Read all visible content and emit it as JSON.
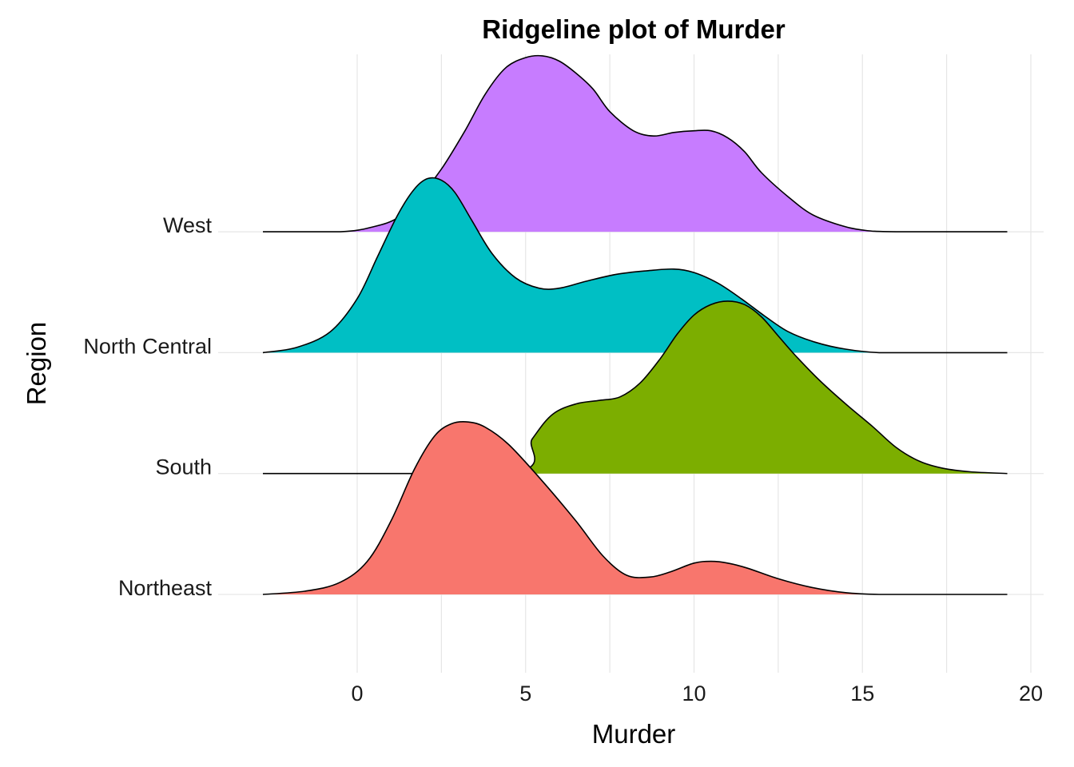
{
  "chart_data": {
    "type": "ridgeline",
    "title": "Ridgeline plot of Murder",
    "xlabel": "Murder",
    "ylabel": "Region",
    "xlim": [
      -2.8,
      20.5
    ],
    "x_ticks": [
      0,
      5,
      10,
      15,
      20
    ],
    "categories": [
      "Northeast",
      "South",
      "North Central",
      "West"
    ],
    "series": [
      {
        "name": "Northeast",
        "color": "#F8766D",
        "x": [
          -2.8,
          -1.5,
          -0.5,
          0.3,
          1.0,
          1.7,
          2.3,
          2.8,
          3.3,
          3.8,
          4.5,
          5.5,
          6.5,
          7.3,
          8.0,
          8.7,
          9.3,
          10.0,
          10.5,
          11.0,
          11.6,
          12.5,
          13.5,
          14.5,
          15.5,
          17.0,
          19.3
        ],
        "y": [
          0.0,
          0.02,
          0.07,
          0.19,
          0.42,
          0.72,
          0.91,
          0.98,
          0.99,
          0.96,
          0.86,
          0.65,
          0.42,
          0.22,
          0.11,
          0.1,
          0.13,
          0.18,
          0.19,
          0.18,
          0.15,
          0.09,
          0.04,
          0.01,
          0.0,
          0.0,
          0.0
        ]
      },
      {
        "name": "South",
        "color": "#7CAE00",
        "x": [
          -2.8,
          4.5,
          5.2,
          5.8,
          6.5,
          7.2,
          7.8,
          8.4,
          9.0,
          9.5,
          10.0,
          10.5,
          11.0,
          11.5,
          12.0,
          12.5,
          13.0,
          13.7,
          14.5,
          15.3,
          16.0,
          16.7,
          17.4,
          18.2,
          19.3
        ],
        "y": [
          0.0,
          0.0,
          0.2,
          0.34,
          0.4,
          0.42,
          0.44,
          0.52,
          0.66,
          0.8,
          0.91,
          0.97,
          0.99,
          0.97,
          0.9,
          0.79,
          0.68,
          0.54,
          0.4,
          0.27,
          0.15,
          0.07,
          0.03,
          0.01,
          0.0
        ]
      },
      {
        "name": "North Central",
        "color": "#00BFC4",
        "x": [
          -2.8,
          -1.8,
          -0.8,
          0.0,
          0.6,
          1.2,
          1.7,
          2.1,
          2.5,
          2.9,
          3.4,
          4.0,
          4.7,
          5.4,
          6.0,
          6.8,
          7.7,
          8.6,
          9.4,
          10.0,
          10.7,
          11.4,
          12.1,
          12.8,
          13.6,
          14.5,
          15.5,
          16.5,
          19.3
        ],
        "y": [
          0.0,
          0.03,
          0.12,
          0.31,
          0.55,
          0.79,
          0.94,
          1.0,
          0.99,
          0.92,
          0.76,
          0.57,
          0.43,
          0.37,
          0.37,
          0.41,
          0.45,
          0.47,
          0.48,
          0.46,
          0.4,
          0.31,
          0.21,
          0.12,
          0.06,
          0.02,
          0.0,
          0.0,
          0.0
        ]
      },
      {
        "name": "West",
        "color": "#C77CFF",
        "x": [
          -2.8,
          -0.5,
          0.5,
          1.2,
          1.8,
          2.5,
          3.2,
          3.8,
          4.4,
          5.0,
          5.5,
          6.0,
          6.5,
          7.0,
          7.5,
          8.2,
          8.8,
          9.4,
          10.0,
          10.5,
          11.0,
          11.5,
          12.0,
          12.8,
          13.5,
          14.3,
          15.0,
          16.0,
          19.3
        ],
        "y": [
          0.0,
          0.0,
          0.03,
          0.08,
          0.19,
          0.36,
          0.58,
          0.79,
          0.94,
          1.0,
          1.01,
          0.98,
          0.91,
          0.82,
          0.69,
          0.58,
          0.55,
          0.57,
          0.58,
          0.58,
          0.54,
          0.46,
          0.34,
          0.2,
          0.1,
          0.04,
          0.01,
          0.0,
          0.0
        ]
      }
    ],
    "grid": true,
    "legend": "none"
  }
}
